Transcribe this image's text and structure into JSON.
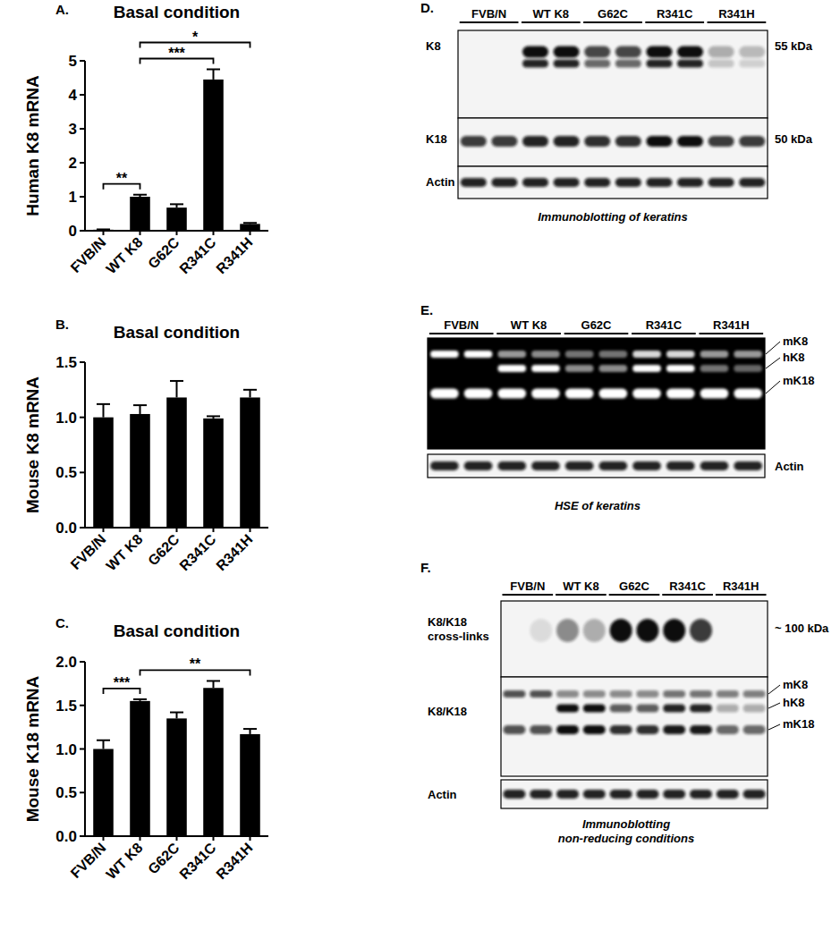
{
  "chart_data": [
    {
      "type": "bar",
      "panel_label": "A.",
      "title": "Basal condition",
      "y_label": "Human K8 mRNA",
      "categories": [
        "FVB/N",
        "WT K8",
        "G62C",
        "R341C",
        "R341H"
      ],
      "values": [
        0.03,
        1.0,
        0.68,
        4.45,
        0.2
      ],
      "errors": [
        0.01,
        0.06,
        0.1,
        0.3,
        0.03
      ],
      "color": "#000000",
      "ylim": [
        0,
        5
      ],
      "yticks": [
        0,
        1,
        2,
        3,
        4,
        5
      ],
      "annotations": [
        {
          "between": [
            "FVB/N",
            "WT K8"
          ],
          "text": "**"
        },
        {
          "between": [
            "WT K8",
            "R341C"
          ],
          "text": "***"
        },
        {
          "between": [
            "WT K8",
            "R341H"
          ],
          "text": "*"
        }
      ]
    },
    {
      "type": "bar",
      "panel_label": "B.",
      "title": "Basal condition",
      "y_label": "Mouse K8 mRNA",
      "categories": [
        "FVB/N",
        "WT K8",
        "G62C",
        "R341C",
        "R341H"
      ],
      "values": [
        1.0,
        1.03,
        1.18,
        0.99,
        1.18
      ],
      "errors": [
        0.12,
        0.08,
        0.15,
        0.02,
        0.07
      ],
      "color": "#000000",
      "ylim": [
        0,
        1.5
      ],
      "yticks": [
        {
          "value": 0,
          "label": "0.0"
        },
        0.5,
        {
          "value": 1,
          "label": "1.0"
        },
        1.5
      ]
    },
    {
      "type": "bar",
      "panel_label": "C.",
      "title": "Basal condition",
      "y_label": "Mouse K18 mRNA",
      "categories": [
        "FVB/N",
        "WT K8",
        "G62C",
        "R341C",
        "R341H"
      ],
      "values": [
        1.0,
        1.55,
        1.35,
        1.7,
        1.17
      ],
      "errors": [
        0.1,
        0.02,
        0.07,
        0.08,
        0.06
      ],
      "color": "#000000",
      "ylim": [
        0,
        2
      ],
      "yticks": [
        {
          "value": 0,
          "label": "0.0"
        },
        0.5,
        {
          "value": 1,
          "label": "1.0"
        },
        1.5,
        {
          "value": 2,
          "label": "2.0"
        }
      ],
      "annotations": [
        {
          "between": [
            "FVB/N",
            "WT K8"
          ],
          "text": "***"
        },
        {
          "between": [
            "WT K8",
            "R341H"
          ],
          "text": "**"
        }
      ]
    }
  ],
  "blots": [
    {
      "panel_label": "D.",
      "lanes": [
        "FVB/N",
        "WT K8",
        "G62C",
        "R341C",
        "R341H"
      ],
      "rows": [
        {
          "label": "K8",
          "size": "55 kDa"
        },
        {
          "label": "K18",
          "size": "50 kDa"
        },
        {
          "label": "Actin"
        }
      ],
      "caption": [
        "Immunoblotting of keratins"
      ]
    },
    {
      "panel_label": "E.",
      "lanes": [
        "FVB/N",
        "WT K8",
        "G62C",
        "R341C",
        "R341H"
      ],
      "rows": [
        {
          "bands": [
            "mK8",
            "hK8",
            "mK18"
          ]
        },
        {
          "label": "Actin"
        }
      ],
      "caption": [
        "HSE of keratins"
      ]
    },
    {
      "panel_label": "F.",
      "lanes": [
        "FVB/N",
        "WT K8",
        "G62C",
        "R341C",
        "R341H"
      ],
      "rows": [
        {
          "label": "K8/K18 cross-links",
          "size": "~ 100 kDa"
        },
        {
          "label": "K8/K18",
          "bands": [
            "mK8",
            "hK8",
            "mK18"
          ]
        },
        {
          "label": "Actin"
        }
      ],
      "caption": [
        "Immunoblotting",
        "non-reducing conditions"
      ]
    }
  ]
}
